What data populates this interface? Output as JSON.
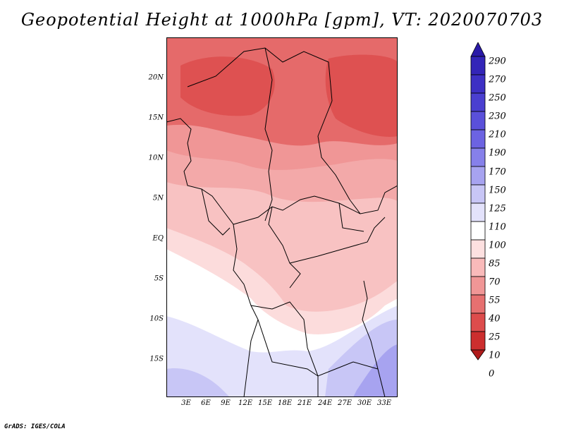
{
  "title": "Geopotential Height at 1000hPa [gpm], VT: 2020070703",
  "latitude_labels": [
    "20N",
    "15N",
    "10N",
    "5N",
    "EQ",
    "5S",
    "10S",
    "15S"
  ],
  "longitude_labels": [
    "3E",
    "6E",
    "9E",
    "12E",
    "15E",
    "18E",
    "21E",
    "24E",
    "27E",
    "30E",
    "33E"
  ],
  "colorbar": {
    "labels": [
      "290",
      "270",
      "250",
      "230",
      "210",
      "190",
      "170",
      "150",
      "125",
      "110",
      "100",
      "85",
      "70",
      "55",
      "40",
      "25",
      "10",
      "0"
    ],
    "colors": [
      "#2a1aa8",
      "#3325b8",
      "#3d30c4",
      "#4a3fd0",
      "#5a50da",
      "#6c63e2",
      "#8680ea",
      "#a7a3f0",
      "#c8c6f6",
      "#e3e2fb",
      "#ffffff",
      "#fde0e0",
      "#f9baba",
      "#f09696",
      "#e67070",
      "#dd4c4c",
      "#cc2e2e",
      "#b01c1c"
    ]
  },
  "credit": "GrADS: IGES/COLA"
}
